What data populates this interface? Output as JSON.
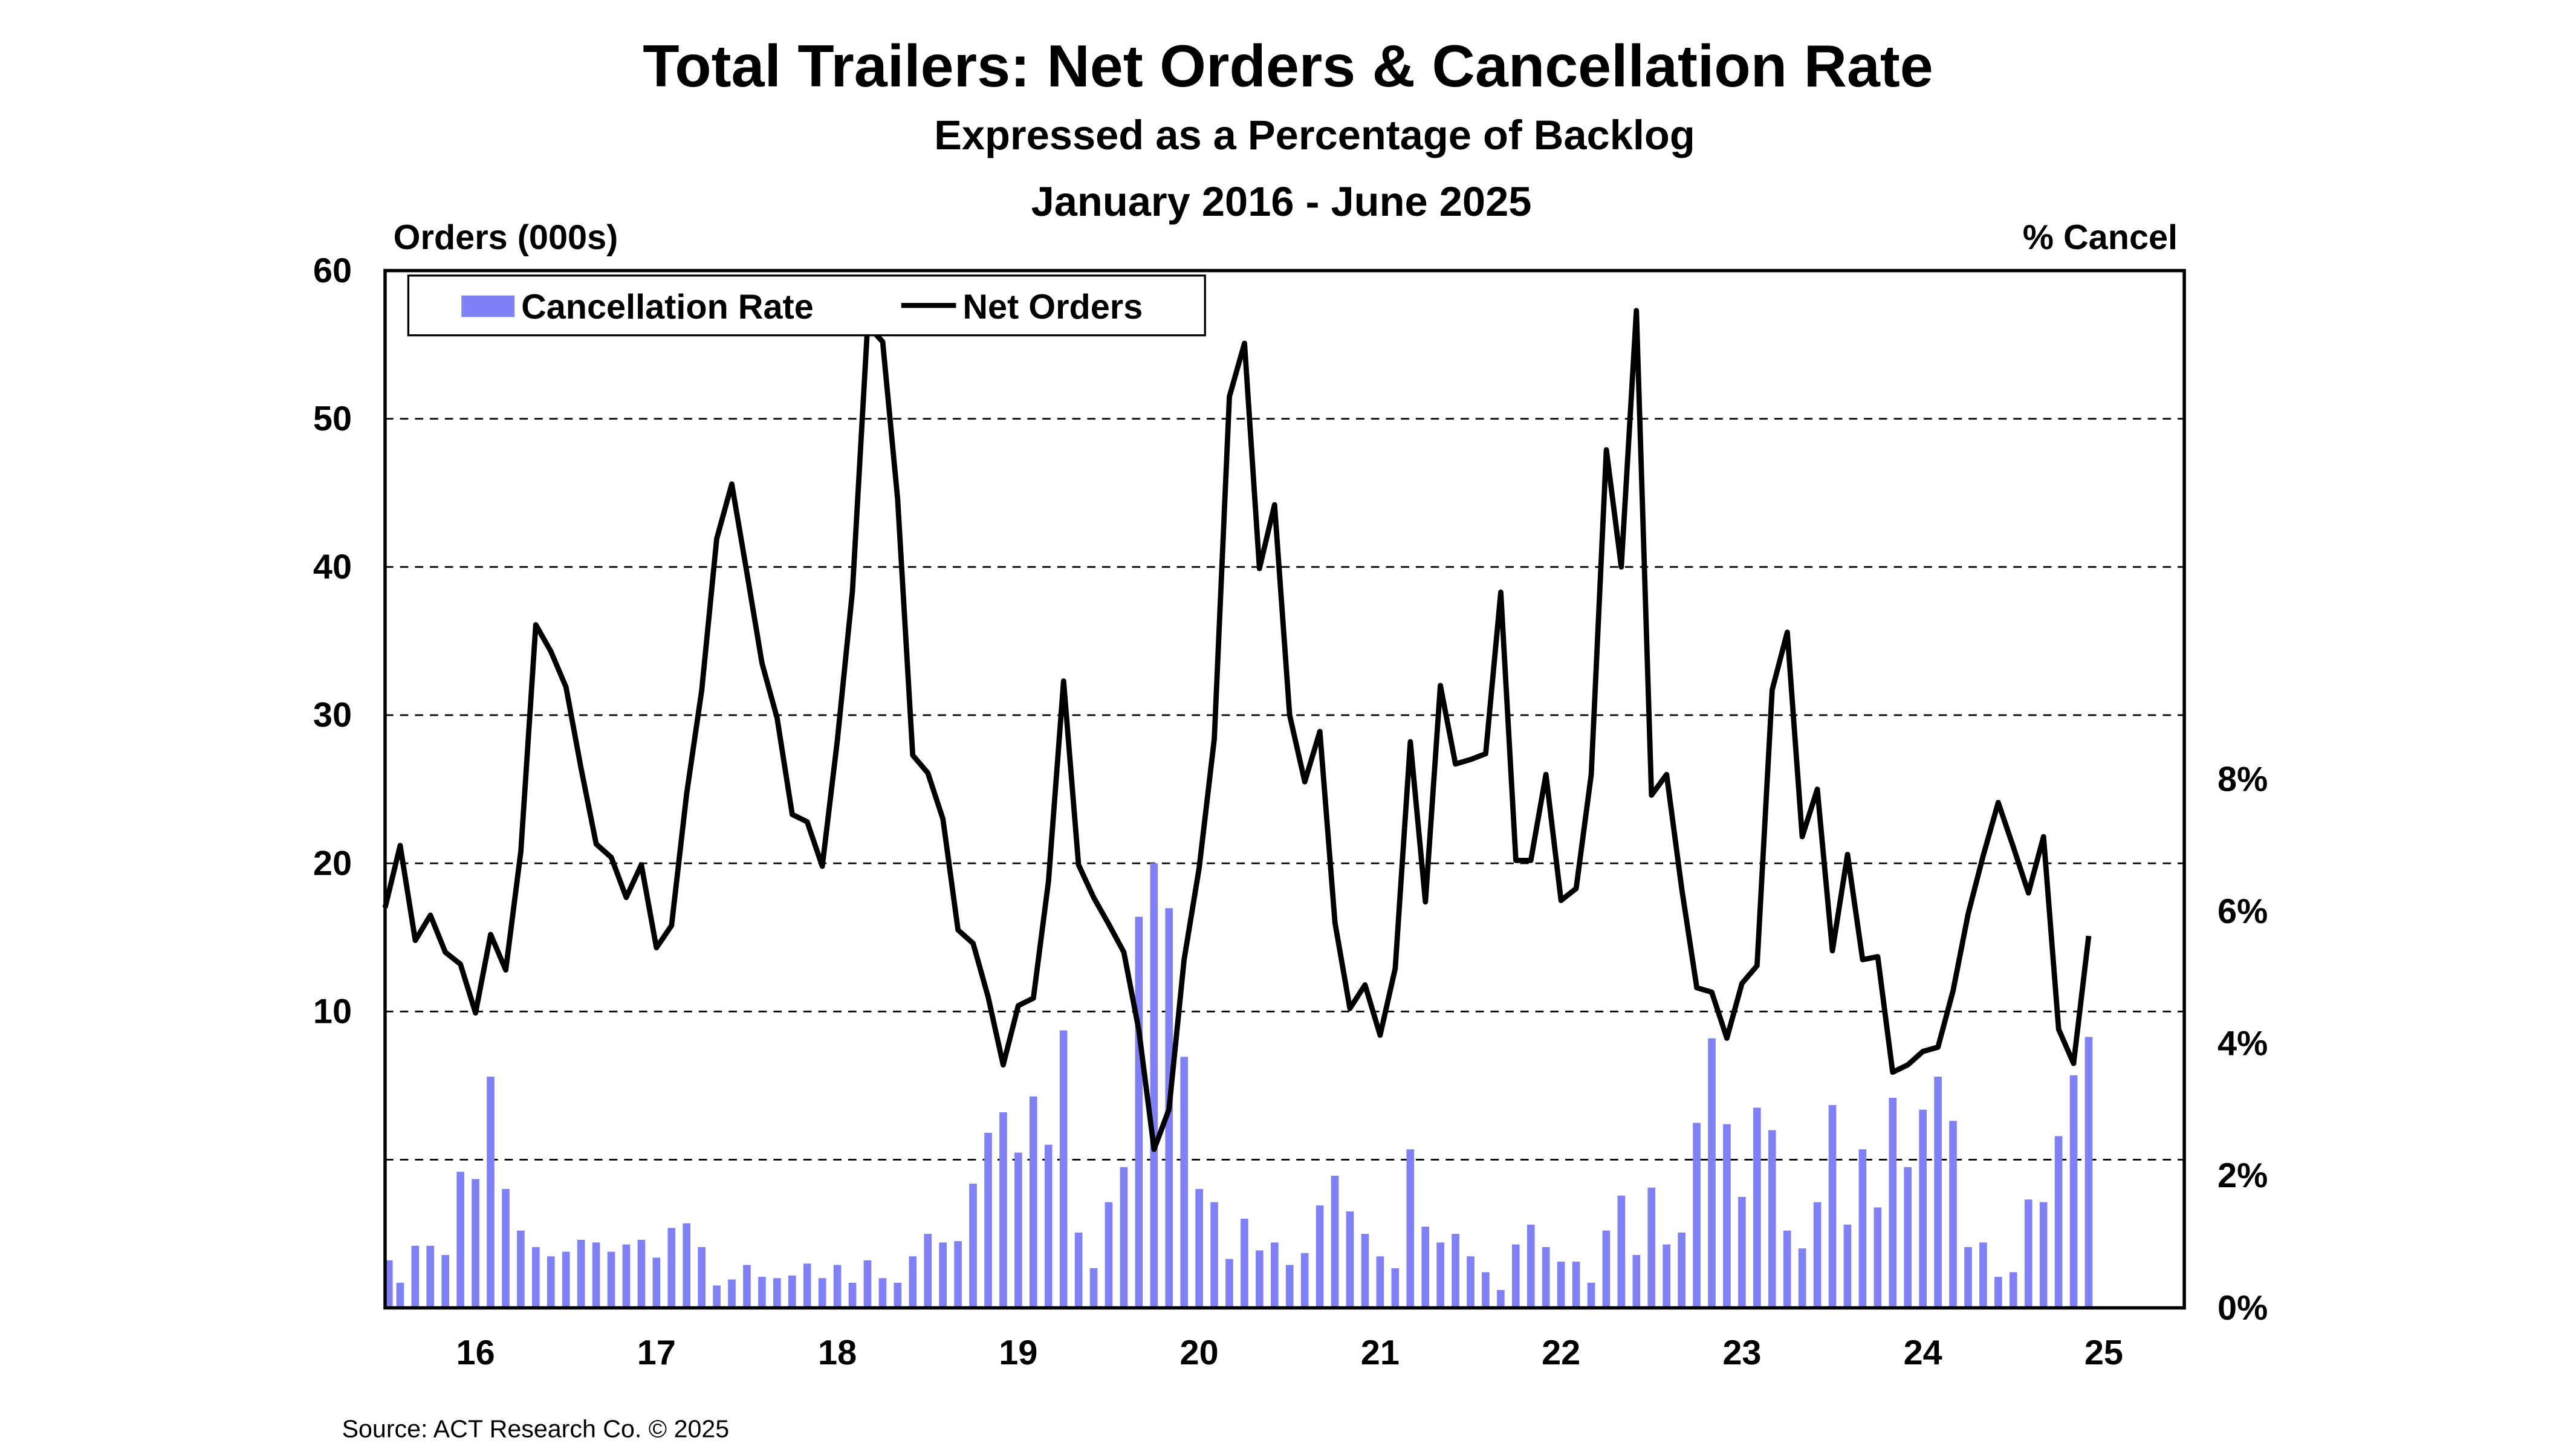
{
  "chart_data": {
    "type": "bar+line",
    "title": "Total Trailers: Net Orders & Cancellation Rate",
    "subtitle": "Expressed as a Percentage of Backlog",
    "date_range": "January 2016 - June 2025",
    "left_axis_title": "Orders (000s)",
    "right_axis_title": "% Cancel",
    "left_ticks": [
      "60",
      "50",
      "40",
      "30",
      "20",
      "10"
    ],
    "left_tick_values": [
      60,
      50,
      40,
      30,
      20,
      10
    ],
    "left_ylim": [
      -10,
      60
    ],
    "right_ticks": [
      "8%",
      "6%",
      "4%",
      "2%",
      "0%"
    ],
    "right_tick_values": [
      8,
      6,
      4,
      2,
      0
    ],
    "right_ylim": [
      0,
      15.7
    ],
    "x_ticks": [
      "16",
      "17",
      "18",
      "19",
      "20",
      "21",
      "22",
      "23",
      "24",
      "25"
    ],
    "x_start": "2016-01",
    "x_end": "2025-06",
    "grid": true,
    "legend_placement": "top-left",
    "series": [
      {
        "name": "Cancellation Rate",
        "type": "bar",
        "axis": "right",
        "unit": "%",
        "color": "#8080f8",
        "values": [
          0.72,
          0.38,
          0.94,
          0.94,
          0.8,
          2.06,
          1.95,
          3.5,
          1.8,
          1.17,
          0.92,
          0.78,
          0.85,
          1.03,
          0.99,
          0.85,
          0.96,
          1.03,
          0.76,
          1.21,
          1.28,
          0.92,
          0.34,
          0.43,
          0.65,
          0.47,
          0.45,
          0.49,
          0.67,
          0.45,
          0.65,
          0.38,
          0.72,
          0.45,
          0.38,
          0.78,
          1.12,
          0.99,
          1.01,
          1.88,
          2.65,
          2.96,
          2.35,
          3.2,
          2.47,
          4.2,
          1.14,
          0.6,
          1.6,
          2.13,
          5.92,
          6.73,
          6.05,
          3.8,
          1.8,
          1.6,
          0.74,
          1.35,
          0.87,
          0.99,
          0.65,
          0.83,
          1.55,
          2.0,
          1.46,
          1.12,
          0.78,
          0.6,
          2.4,
          1.23,
          0.99,
          1.12,
          0.78,
          0.54,
          0.27,
          0.96,
          1.26,
          0.92,
          0.7,
          0.7,
          0.38,
          1.17,
          1.7,
          0.8,
          1.82,
          0.96,
          1.14,
          2.8,
          4.08,
          2.78,
          1.68,
          3.03,
          2.69,
          1.17,
          0.9,
          1.6,
          3.07,
          1.26,
          2.4,
          1.52,
          3.18,
          2.13,
          3.0,
          3.5,
          2.83,
          0.92,
          0.99,
          0.47,
          0.54,
          1.64,
          1.6,
          2.6,
          3.52,
          4.1
        ]
      },
      {
        "name": "Net Orders",
        "type": "line",
        "axis": "left",
        "unit": "000s",
        "color": "#000000",
        "values": [
          17.0,
          21.2,
          14.8,
          16.5,
          14.0,
          13.2,
          9.9,
          15.2,
          12.8,
          20.8,
          36.1,
          34.3,
          31.9,
          26.4,
          21.3,
          20.4,
          17.7,
          19.9,
          14.3,
          15.8,
          24.7,
          31.7,
          41.9,
          45.6,
          39.6,
          33.5,
          29.8,
          23.3,
          22.8,
          19.8,
          28.3,
          38.4,
          56.3,
          55.2,
          44.6,
          27.3,
          26.1,
          23.0,
          15.5,
          14.6,
          11.0,
          6.4,
          10.4,
          10.9,
          18.8,
          32.3,
          19.9,
          17.7,
          15.9,
          14.0,
          8.7,
          0.7,
          3.4,
          13.5,
          19.7,
          28.4,
          51.5,
          55.1,
          39.9,
          44.2,
          30.0,
          25.5,
          28.9,
          16.0,
          10.2,
          11.8,
          8.4,
          12.9,
          28.2,
          17.4,
          32.0,
          26.7,
          27.0,
          27.4,
          38.3,
          20.2,
          20.2,
          26.0,
          17.5,
          18.3,
          26.0,
          47.9,
          40.0,
          57.3,
          24.6,
          26.0,
          18.3,
          11.6,
          11.3,
          8.2,
          11.9,
          13.1,
          31.7,
          35.6,
          21.8,
          25.0,
          14.1,
          20.6,
          13.5,
          13.7,
          5.9,
          6.4,
          7.3,
          7.6,
          11.4,
          16.6,
          20.5,
          24.1,
          21.1,
          18.0,
          21.8,
          8.8,
          6.5,
          15.1
        ]
      }
    ]
  },
  "source": "Source: ACT Research Co. © 2025"
}
